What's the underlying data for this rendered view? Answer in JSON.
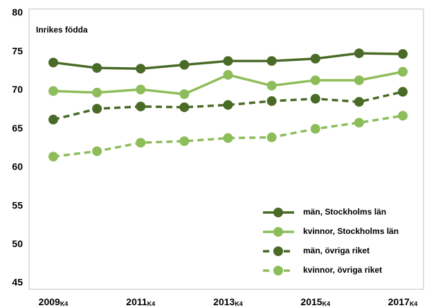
{
  "chart_data": {
    "type": "line",
    "annotation": "Inrikes födda",
    "categories": [
      "2009",
      null,
      "2011",
      null,
      "2013",
      null,
      "2015",
      null,
      "2017"
    ],
    "category_suffix": "K4",
    "ylim": [
      45,
      80
    ],
    "yticks": [
      45,
      50,
      55,
      60,
      65,
      70,
      75,
      80
    ],
    "grid": false,
    "legend": "lower right",
    "series": [
      {
        "name": "män, Stockholms län",
        "color": "#4a6b27",
        "dashed": false,
        "values": [
          73.6,
          72.9,
          72.8,
          73.3,
          73.8,
          73.8,
          74.1,
          74.8,
          74.7
        ]
      },
      {
        "name": "kvinnor, Stockholms län",
        "color": "#8dbd5a",
        "dashed": false,
        "values": [
          69.9,
          69.7,
          70.1,
          69.5,
          72.0,
          70.6,
          71.3,
          71.3,
          72.4
        ]
      },
      {
        "name": "män, övriga riket",
        "color": "#4a6b27",
        "dashed": true,
        "values": [
          66.2,
          67.6,
          67.9,
          67.8,
          68.1,
          68.6,
          68.9,
          68.5,
          69.8
        ]
      },
      {
        "name": "kvinnor, övriga riket",
        "color": "#8dbd5a",
        "dashed": true,
        "values": [
          61.4,
          62.1,
          63.2,
          63.4,
          63.8,
          63.9,
          65.0,
          65.8,
          66.7
        ]
      }
    ]
  }
}
